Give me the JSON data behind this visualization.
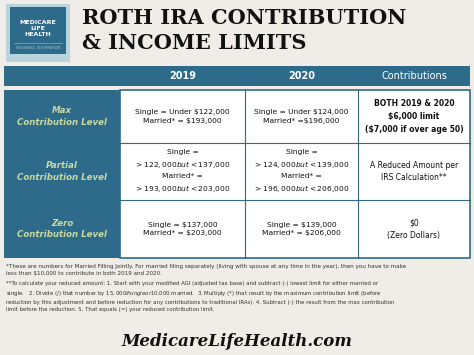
{
  "title_line1": "ROTH IRA CONTRIBUTION",
  "title_line2": "& INCOME LIMITS",
  "bg_color": "#f0ede8",
  "header_bg": "#2e6b8a",
  "left_col_bg": "#2e6b8a",
  "left_col_text_color": "#c8d8a0",
  "table_border_color": "#2e6b8a",
  "col_headers": [
    "2019",
    "2020",
    "Contributions"
  ],
  "row_labels": [
    "Max\nContribution Level",
    "Partial\nContribution Level",
    "Zero\nContribution Level"
  ],
  "cell_2019": [
    "Single = Under $122,000\nMarried* = $193,000",
    "Single =\n> $122,000 but < $137,000\nMarried* =\n> $193,000 but < $203,000",
    "Single = $137,000\nMarried* = $203,000"
  ],
  "cell_2020": [
    "Single = Under $124,000\nMarried* =$196,000",
    "Single =\n> $124,000 but < $139,000\nMarried* =\n> $196,000 but < $206,000",
    "Single = $139,000\nMarried* = $206,000"
  ],
  "cell_contrib": [
    "BOTH 2019 & 2020\n$6,000 limit\n($7,000 if over age 50)",
    "A Reduced Amount per\nIRS Calculation**",
    "$0\n(Zero Dollars)"
  ],
  "footnote1": "*These are numbers for Married Filling Jointly. For married filing separately (living with spouse at any time in the year), then you have to make\nless than $10,000 to contribute in both 2019 and 2020.",
  "footnote2": "**To calculate your reduced amount: 1. Start with your modified AGI (adjusted tax base) and subtract (-) lowest limit for either married or\nsingle.   2. Divide (/) that number by $15,000 if single or $10,000 married.  3. Multiply (*) that result by the maximum contribution limit (before\nreduction by this adjustment and before reduction for any contributions to traditional IRAs). 4. Subtract (-) the result from the max contribution\nlimit before the reduction. 5. That equals (=) your reduced contribution limit.",
  "website": "MedicareLifeHealth.com",
  "logo_bg": "#b8d4dc",
  "logo_inner_bg": "#2e6b8a"
}
